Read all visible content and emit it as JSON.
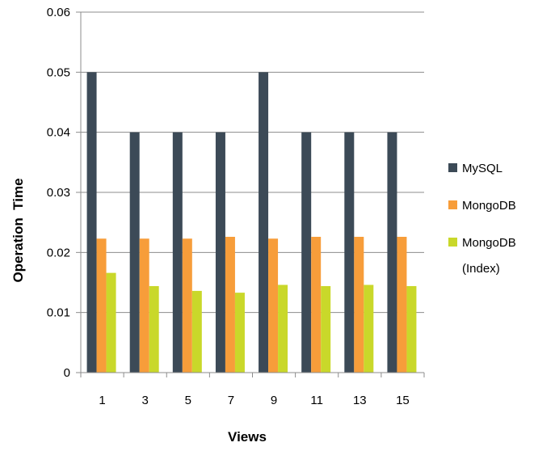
{
  "chart_data": {
    "type": "bar",
    "title": "",
    "xlabel": "Views",
    "ylabel": "Operation  Time",
    "categories": [
      "1",
      "3",
      "5",
      "7",
      "9",
      "11",
      "13",
      "15"
    ],
    "series": [
      {
        "name": "MySQL",
        "color": "#3c4a57",
        "values": [
          0.05,
          0.04,
          0.04,
          0.04,
          0.05,
          0.04,
          0.04,
          0.04
        ]
      },
      {
        "name": "MongoDB",
        "color": "#f79d3a",
        "values": [
          0.0223,
          0.0223,
          0.0223,
          0.0226,
          0.0223,
          0.0226,
          0.0226,
          0.0226
        ]
      },
      {
        "name": "MongoDB (Index)",
        "name_lines": [
          "MongoDB",
          "(Index)"
        ],
        "color": "#c9d82a",
        "values": [
          0.0166,
          0.0144,
          0.0136,
          0.0133,
          0.0146,
          0.0144,
          0.0146,
          0.0144
        ]
      }
    ],
    "ylim": [
      0,
      0.06
    ],
    "yticks": [
      "0",
      "0.01",
      "0.02",
      "0.03",
      "0.04",
      "0.05",
      "0.06"
    ],
    "grid": true,
    "legend_position": "right"
  }
}
